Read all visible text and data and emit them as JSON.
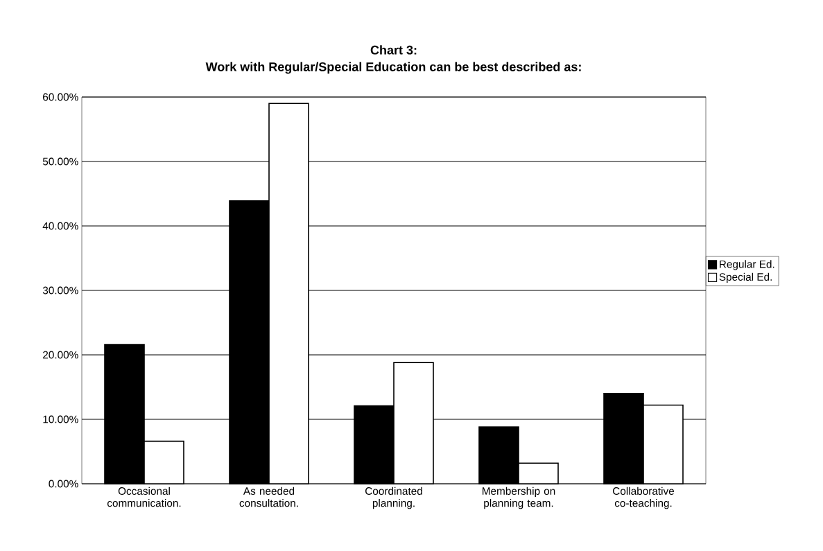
{
  "chart_data": {
    "type": "bar",
    "title": "Chart 3:",
    "subtitle": "Work with Regular/Special Education can be best described as:",
    "categories": [
      "Occasional communication.",
      "As needed consultation.",
      "Coordinated planning.",
      "Membership on planning team.",
      "Collaborative co-teaching."
    ],
    "series": [
      {
        "name": "Regular Ed.",
        "color": "#000000",
        "values": [
          21.6,
          43.9,
          12.1,
          8.8,
          14.0
        ]
      },
      {
        "name": "Special Ed.",
        "color": "#ffffff",
        "values": [
          6.6,
          59.0,
          18.8,
          3.2,
          12.2
        ]
      }
    ],
    "ylim": [
      0,
      60
    ],
    "yticks": [
      {
        "value": 0,
        "label": "0.00%"
      },
      {
        "value": 10,
        "label": "10.00%"
      },
      {
        "value": 20,
        "label": "20.00%"
      },
      {
        "value": 30,
        "label": "30.00%"
      },
      {
        "value": 40,
        "label": "40.00%"
      },
      {
        "value": 50,
        "label": "50.00%"
      },
      {
        "value": 60,
        "label": "60.00%"
      }
    ],
    "grid": "y",
    "legend": "right"
  }
}
